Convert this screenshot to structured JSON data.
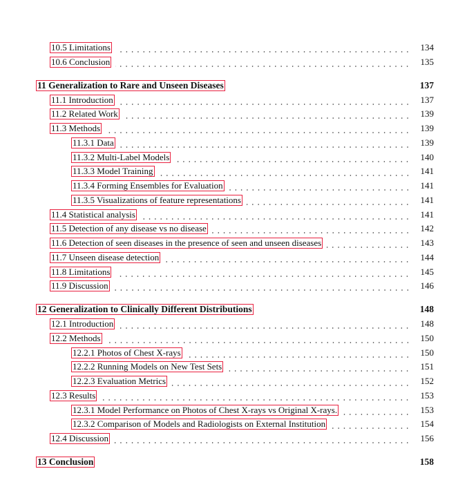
{
  "toc": [
    {
      "level": 2,
      "label": "10.5  Limitations",
      "page": "134"
    },
    {
      "level": 2,
      "label": "10.6  Conclusion",
      "page": "135"
    },
    {
      "level": 1,
      "label": "11 Generalization to Rare and Unseen Diseases",
      "page": "137"
    },
    {
      "level": 2,
      "label": "11.1  Introduction",
      "page": "137"
    },
    {
      "level": 2,
      "label": "11.2  Related Work",
      "page": "139"
    },
    {
      "level": 2,
      "label": "11.3  Methods",
      "page": "139"
    },
    {
      "level": 3,
      "label": "11.3.1  Data",
      "page": "139"
    },
    {
      "level": 3,
      "label": "11.3.2  Multi-Label Models",
      "page": "140"
    },
    {
      "level": 3,
      "label": "11.3.3  Model Training",
      "page": "141"
    },
    {
      "level": 3,
      "label": "11.3.4  Forming Ensembles for Evaluation",
      "page": "141"
    },
    {
      "level": 3,
      "label": "11.3.5  Visualizations of feature representations",
      "page": "141"
    },
    {
      "level": 2,
      "label": "11.4  Statistical analysis",
      "page": "141"
    },
    {
      "level": 2,
      "label": "11.5  Detection of any disease vs no disease",
      "page": "142"
    },
    {
      "level": 2,
      "label": "11.6  Detection of seen diseases in the presence of seen and unseen diseases",
      "page": "143"
    },
    {
      "level": 2,
      "label": "11.7  Unseen disease detection",
      "page": "144"
    },
    {
      "level": 2,
      "label": "11.8  Limitations",
      "page": "145"
    },
    {
      "level": 2,
      "label": "11.9  Discussion",
      "page": "146"
    },
    {
      "level": 1,
      "label": "12 Generalization to Clinically Different Distributions",
      "page": "148"
    },
    {
      "level": 2,
      "label": "12.1  Introduction",
      "page": "148"
    },
    {
      "level": 2,
      "label": "12.2  Methods",
      "page": "150"
    },
    {
      "level": 3,
      "label": "12.2.1  Photos of Chest X-rays",
      "page": "150"
    },
    {
      "level": 3,
      "label": "12.2.2  Running Models on New Test Sets",
      "page": "151"
    },
    {
      "level": 3,
      "label": "12.2.3  Evaluation Metrics",
      "page": "152"
    },
    {
      "level": 2,
      "label": "12.3  Results",
      "page": "153"
    },
    {
      "level": 3,
      "label": "12.3.1  Model Performance on Photos of Chest X-rays vs Original X-rays.",
      "page": "153"
    },
    {
      "level": 3,
      "label": "12.3.2  Comparison of Models and Radiologists on External Institution",
      "page": "154"
    },
    {
      "level": 2,
      "label": "12.4  Discussion",
      "page": "156"
    },
    {
      "level": 1,
      "label": "13 Conclusion",
      "page": "158"
    }
  ]
}
